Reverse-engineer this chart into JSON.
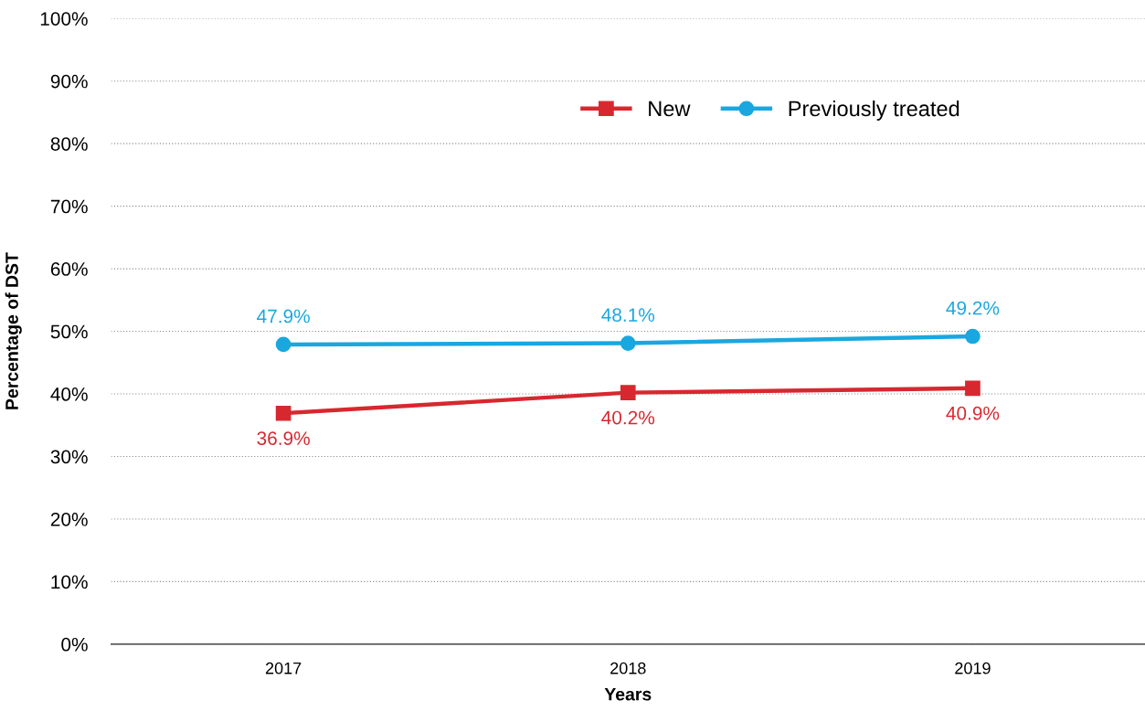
{
  "chart_data": {
    "type": "line",
    "xlabel": "Years",
    "ylabel": "Percentage of DST",
    "x": [
      2017,
      2018,
      2019
    ],
    "xlim": [
      2016.5,
      2019.5
    ],
    "xticks": [
      2017,
      2018,
      2019
    ],
    "series": [
      {
        "name": "New",
        "color": "#d7282f",
        "values": [
          36.9,
          40.2,
          40.9
        ],
        "marker": "square",
        "value_labels": [
          "36.9%",
          "40.2%",
          "40.9%"
        ]
      },
      {
        "name": "Previously treated",
        "color": "#1aa7df",
        "values": [
          47.9,
          48.1,
          49.2
        ],
        "marker": "circle",
        "value_labels": [
          "47.9%",
          "48.1%",
          "49.2%"
        ]
      }
    ],
    "ylim": [
      0,
      100
    ],
    "yticks": [
      {
        "value": 0,
        "label": "0%"
      },
      {
        "value": 10,
        "label": "10%"
      },
      {
        "value": 20,
        "label": "20%"
      },
      {
        "value": 30,
        "label": "30%"
      },
      {
        "value": 40,
        "label": "40%"
      },
      {
        "value": 50,
        "label": "50%"
      },
      {
        "value": 60,
        "label": "60%"
      },
      {
        "value": 70,
        "label": "70%"
      },
      {
        "value": 80,
        "label": "80%"
      },
      {
        "value": 90,
        "label": "90%"
      },
      {
        "value": 100,
        "label": "100%"
      }
    ],
    "grid": "y",
    "legend": "top right",
    "line_style": "solid"
  }
}
